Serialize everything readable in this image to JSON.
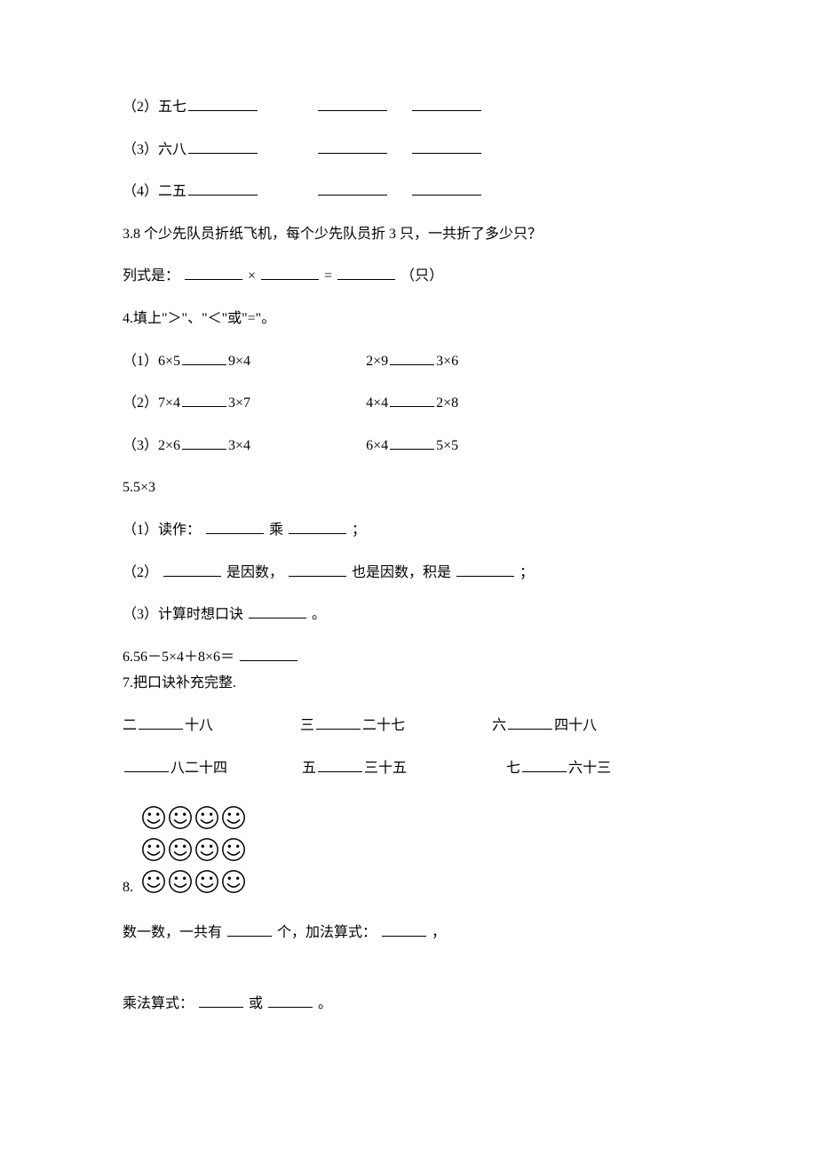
{
  "doc": {
    "background_color": "#ffffff",
    "text_color": "#000000",
    "font_family": "SimSun",
    "base_fontsize": 16
  },
  "q2": {
    "sub2": {
      "label": "（2）五七"
    },
    "sub3": {
      "label": "（3）六八"
    },
    "sub4": {
      "label": "（4）二五"
    }
  },
  "q3": {
    "text": "3.8 个少先队员折纸飞机，每个少先队员折 3 只，一共折了多少只？",
    "eq_prefix": "列式是：",
    "times": "×",
    "equals": "=",
    "unit": "（只）"
  },
  "q4": {
    "title": "4.填上\"＞\"、\"＜\"或\"=\"。",
    "rows": [
      {
        "left_a": "（1）6×5",
        "left_b": "9×4",
        "right_a": "2×9",
        "right_b": "3×6"
      },
      {
        "left_a": "（2）7×4",
        "left_b": "3×7",
        "right_a": "4×4",
        "right_b": "2×8"
      },
      {
        "left_a": "（3）2×6",
        "left_b": "3×4",
        "right_a": "6×4",
        "right_b": "5×5"
      }
    ]
  },
  "q5": {
    "title": "5.5×3",
    "p1_a": "（1）读作：",
    "p1_b": "乘",
    "p1_c": "；",
    "p2_a": "（2）",
    "p2_b": "是因数，",
    "p2_c": "也是因数，积是",
    "p2_d": "；",
    "p3_a": "（3）计算时想口诀",
    "p3_b": "。"
  },
  "q6": {
    "a": "6.56－5×4＋8×6＝"
  },
  "q7": {
    "title": "7.把口诀补充完整.",
    "row1": {
      "c1_a": "二",
      "c1_b": "十八",
      "c2_a": "三",
      "c2_b": "二十七",
      "c3_a": "六",
      "c3_b": "四十八"
    },
    "row2": {
      "c1_a": "",
      "c1_b": "八二十四",
      "c2_a": "五",
      "c2_b": "三十五",
      "c3_a": "七",
      "c3_b": "六十三"
    }
  },
  "q8": {
    "label": "8.",
    "smiley_rows": 3,
    "smiley_cols": 4,
    "line1_a": "数一数，一共有",
    "line1_b": "个，加法算式：",
    "line1_c": "，",
    "line2_a": "乘法算式：",
    "line2_b": "或",
    "line2_c": "。"
  },
  "icons": {
    "smiley_stroke": "#000000",
    "smiley_fill": "#ffffff"
  }
}
